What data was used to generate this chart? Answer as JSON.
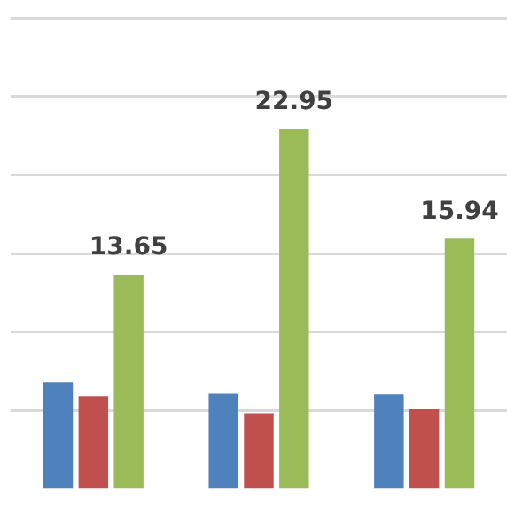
{
  "chart_data": {
    "type": "bar",
    "categories": [
      null,
      null,
      null
    ],
    "series": [
      {
        "color": "#4f81bd",
        "values": [
          6.8,
          6.1,
          6.0
        ]
      },
      {
        "color": "#c0504d",
        "values": [
          5.9,
          4.8,
          5.1
        ]
      },
      {
        "color": "#9bbb59",
        "values": [
          13.65,
          22.95,
          15.94
        ],
        "value_labels": [
          "13.65",
          "22.95",
          "15.94"
        ]
      }
    ],
    "ylim": [
      0,
      30
    ],
    "yticks": [
      {
        "value": 5,
        "label": null
      },
      {
        "value": 10,
        "label": null
      },
      {
        "value": 15,
        "label": null
      },
      {
        "value": 20,
        "label": null
      },
      {
        "value": 25,
        "label": null
      },
      {
        "value": 30,
        "label": null
      }
    ],
    "grid": "y",
    "legend": false
  }
}
